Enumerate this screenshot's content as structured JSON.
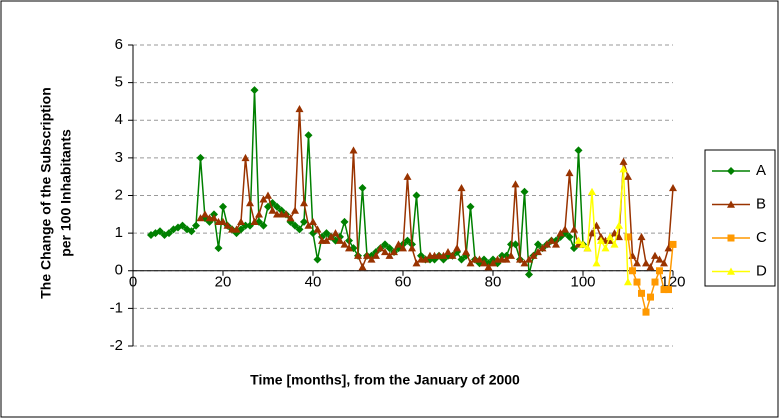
{
  "chart_data": {
    "type": "line",
    "ylabel": [
      "The Change of the Subscription",
      "per 100 Inhabitants"
    ],
    "xlabel": "Time [months], from the January of 2000",
    "xlim": [
      0,
      120
    ],
    "xticks": [
      0,
      20,
      40,
      60,
      80,
      100,
      120
    ],
    "ylim": [
      -2,
      6
    ],
    "yticks": [
      -2,
      -1,
      0,
      1,
      2,
      3,
      4,
      5,
      6
    ],
    "grid": true,
    "legend": "right",
    "series": [
      {
        "name": "A",
        "color": "#008000",
        "marker": "diamond",
        "x": [
          4,
          5,
          6,
          7,
          8,
          9,
          10,
          11,
          12,
          13,
          14,
          15,
          16,
          17,
          18,
          19,
          20,
          21,
          22,
          23,
          24,
          25,
          26,
          27,
          28,
          29,
          30,
          31,
          32,
          33,
          34,
          35,
          36,
          37,
          38,
          39,
          40,
          41,
          42,
          43,
          44,
          45,
          46,
          47,
          48,
          49,
          50,
          51,
          52,
          53,
          54,
          55,
          56,
          57,
          58,
          59,
          60,
          61,
          62,
          63,
          64,
          65,
          66,
          67,
          68,
          69,
          70,
          71,
          72,
          73,
          74,
          75,
          76,
          77,
          78,
          79,
          80,
          81,
          82,
          83,
          84,
          85,
          86,
          87,
          88,
          89,
          90,
          91,
          92,
          93,
          94,
          95,
          96,
          97,
          98,
          99,
          100
        ],
        "values": [
          0.95,
          1.0,
          1.05,
          0.95,
          1.0,
          1.1,
          1.15,
          1.2,
          1.1,
          1.05,
          1.2,
          3.0,
          1.4,
          1.3,
          1.5,
          0.6,
          1.7,
          1.2,
          1.1,
          1.0,
          1.1,
          1.2,
          1.2,
          4.8,
          1.3,
          1.2,
          1.7,
          1.8,
          1.7,
          1.6,
          1.5,
          1.3,
          1.2,
          1.1,
          1.3,
          3.6,
          1.0,
          0.3,
          0.9,
          1.0,
          0.9,
          0.8,
          0.9,
          1.3,
          0.8,
          0.6,
          0.4,
          2.2,
          0.4,
          0.4,
          0.5,
          0.6,
          0.7,
          0.6,
          0.5,
          0.6,
          0.7,
          0.8,
          0.7,
          2.0,
          0.4,
          0.3,
          0.3,
          0.3,
          0.4,
          0.3,
          0.4,
          0.4,
          0.5,
          0.3,
          0.4,
          1.7,
          0.3,
          0.2,
          0.3,
          0.2,
          0.3,
          0.2,
          0.4,
          0.4,
          0.7,
          0.7,
          0.3,
          2.1,
          -0.1,
          0.4,
          0.7,
          0.6,
          0.7,
          0.8,
          0.8,
          0.9,
          1.0,
          0.9,
          0.6,
          3.2,
          0.7
        ]
      },
      {
        "name": "B",
        "color": "#993300",
        "marker": "triangle",
        "x": [
          15,
          16,
          17,
          18,
          19,
          20,
          21,
          22,
          23,
          24,
          25,
          26,
          27,
          28,
          29,
          30,
          31,
          32,
          33,
          34,
          35,
          36,
          37,
          38,
          39,
          40,
          41,
          42,
          43,
          44,
          45,
          46,
          47,
          48,
          49,
          50,
          51,
          52,
          53,
          54,
          55,
          56,
          57,
          58,
          59,
          60,
          61,
          62,
          63,
          64,
          65,
          66,
          67,
          68,
          69,
          70,
          71,
          72,
          73,
          74,
          75,
          76,
          77,
          78,
          79,
          80,
          81,
          82,
          83,
          84,
          85,
          86,
          87,
          88,
          89,
          90,
          91,
          92,
          93,
          94,
          95,
          96,
          97,
          98,
          99,
          100,
          101,
          102,
          103,
          104,
          105,
          106,
          107,
          108,
          109,
          110,
          111,
          112,
          113,
          114,
          115,
          116,
          117,
          118,
          119,
          120
        ],
        "values": [
          1.4,
          1.5,
          1.4,
          1.4,
          1.3,
          1.3,
          1.2,
          1.1,
          1.1,
          1.3,
          3.0,
          1.8,
          1.3,
          1.5,
          1.9,
          2.0,
          1.6,
          1.5,
          1.5,
          1.5,
          1.4,
          1.6,
          4.3,
          1.8,
          1.2,
          1.3,
          1.1,
          0.8,
          0.8,
          0.9,
          1.0,
          0.8,
          0.7,
          0.6,
          3.2,
          0.4,
          0.1,
          0.4,
          0.3,
          0.4,
          0.6,
          0.5,
          0.4,
          0.5,
          0.7,
          0.6,
          2.5,
          0.6,
          0.2,
          0.3,
          0.3,
          0.4,
          0.4,
          0.4,
          0.4,
          0.5,
          0.4,
          0.6,
          2.2,
          0.5,
          0.2,
          0.3,
          0.3,
          0.2,
          0.1,
          0.2,
          0.3,
          0.3,
          0.3,
          0.4,
          2.3,
          0.3,
          0.2,
          0.3,
          0.4,
          0.5,
          0.6,
          0.7,
          0.8,
          0.7,
          1.0,
          1.1,
          2.6,
          1.1,
          0.7,
          0.7,
          0.6,
          1.0,
          1.2,
          0.9,
          0.8,
          0.8,
          1.0,
          0.9,
          2.9,
          2.5,
          0.4,
          0.2,
          0.9,
          0.2,
          0.1,
          0.4,
          0.3,
          0.2,
          0.6,
          2.2
        ]
      },
      {
        "name": "C",
        "color": "#FF9900",
        "marker": "square",
        "x": [
          110,
          111,
          112,
          113,
          114,
          115,
          116,
          117,
          118,
          119,
          120
        ],
        "values": [
          0.9,
          0.0,
          -0.3,
          -0.6,
          -1.1,
          -0.7,
          -0.3,
          0.0,
          -0.5,
          -0.5,
          0.7
        ]
      },
      {
        "name": "D",
        "color": "#FFFF00",
        "marker": "triangle",
        "x": [
          99,
          100,
          101,
          102,
          103,
          104,
          105,
          106,
          107,
          108,
          109,
          110
        ],
        "values": [
          0.8,
          0.7,
          0.6,
          2.1,
          0.2,
          0.8,
          0.6,
          0.9,
          0.7,
          1.2,
          2.7,
          -0.3
        ]
      }
    ]
  }
}
